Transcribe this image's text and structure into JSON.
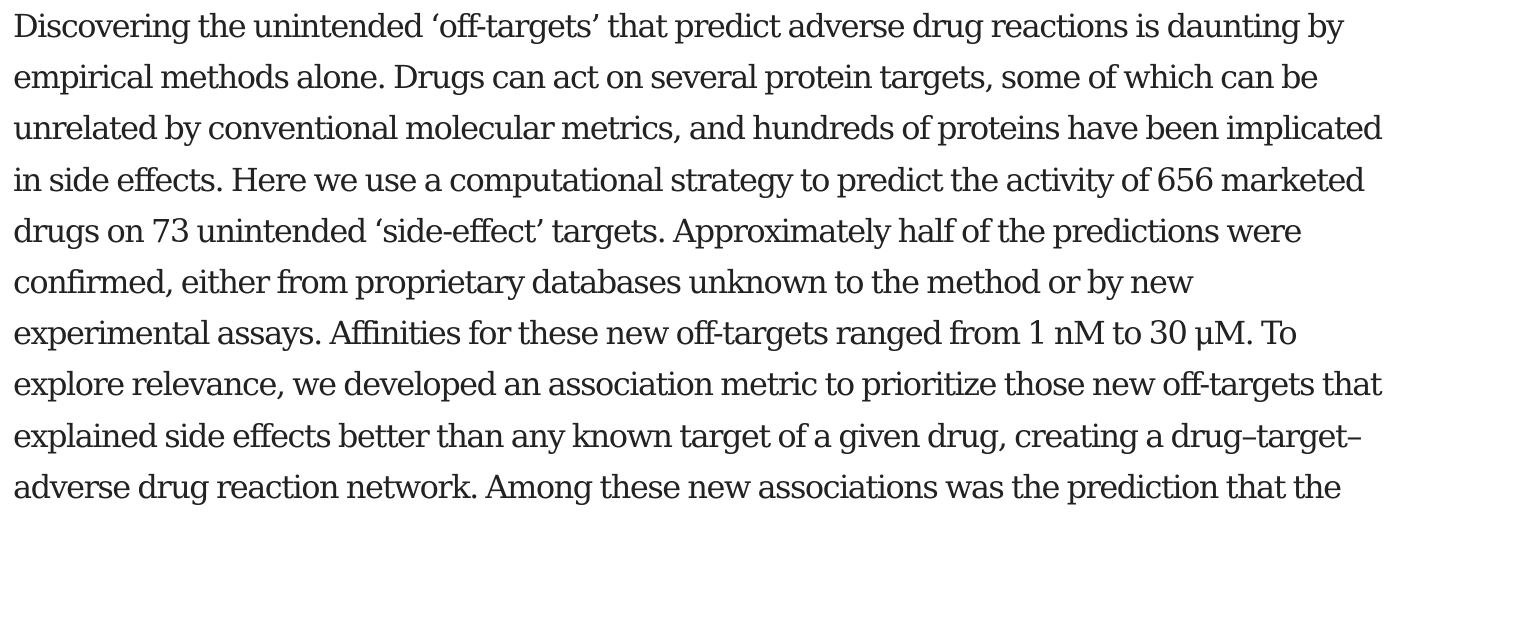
{
  "abstract": {
    "lines": [
      "Discovering the unintended ‘off-targets’ that predict adverse drug reactions is daunting by",
      "empirical methods alone. Drugs can act on several protein targets, some of which can be",
      "unrelated by conventional molecular metrics, and hundreds of proteins have been implicated",
      "in side effects. Here we use a computational strategy to predict the activity of 656 marketed",
      "drugs on 73 unintended ‘side-effect’ targets. Approximately half of the predictions were",
      "confirmed, either from proprietary databases unknown to the method or by new",
      "experimental assays. Affinities for these new off-targets ranged from 1 nM to 30 μM. To",
      "explore relevance, we developed an association metric to prioritize those new off-targets that",
      "explained side effects better than any known target of a given drug, creating a drug–target–",
      "adverse drug reaction network. Among these new associations was the prediction that the"
    ]
  }
}
